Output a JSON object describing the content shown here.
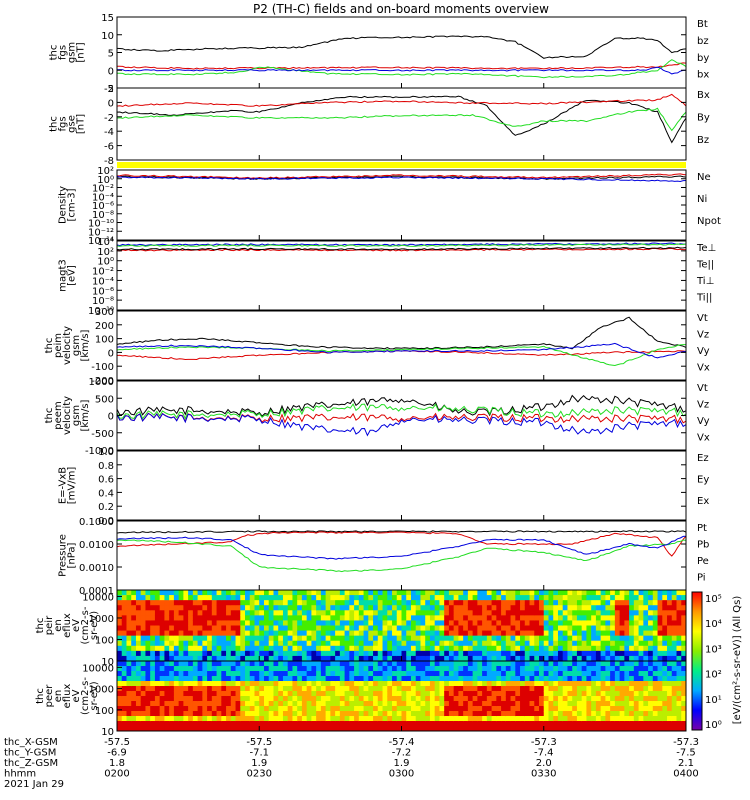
{
  "title": "P2 (TH-C) fields and on-board moments overview",
  "colors": {
    "black": "#000000",
    "red": "#dd0000",
    "green": "#22dd22",
    "blue": "#0000dd",
    "yellow": "#ffff00"
  },
  "chart_data": [
    {
      "type": "line",
      "id": "fgs",
      "ylabel": [
        "thc",
        "fgs",
        "gsm",
        "[nT]"
      ],
      "ylim": [
        -5,
        15
      ],
      "ticks": [
        "15",
        "10",
        "5",
        "0",
        "-5"
      ],
      "legend": [
        "Bt",
        "bz",
        "by",
        "bx"
      ],
      "series": [
        {
          "name": "Bt",
          "color": "black",
          "x": [
            0,
            0.3,
            0.6,
            0.9,
            1.1,
            1.3,
            1.6,
            2,
            2.3,
            2.6,
            2.8,
            3,
            3.3,
            3.5,
            3.7,
            3.8,
            3.9,
            4
          ],
          "y": [
            6,
            5.5,
            6,
            6.2,
            6.3,
            6.5,
            9,
            9.3,
            9.5,
            9.5,
            8,
            3.5,
            4,
            9,
            9,
            8.5,
            5,
            6
          ]
        },
        {
          "name": "bz",
          "color": "red",
          "x": [
            0,
            0.5,
            1,
            1.5,
            2,
            2.5,
            3,
            3.5,
            3.8,
            4
          ],
          "y": [
            1,
            0.5,
            0.6,
            0.7,
            0.8,
            0.6,
            0.5,
            0.8,
            1,
            2
          ]
        },
        {
          "name": "by",
          "color": "green",
          "x": [
            0,
            0.5,
            0.9,
            1,
            1.5,
            2,
            2.5,
            3,
            3.5,
            3.8,
            3.9,
            4
          ],
          "y": [
            -1,
            -1.2,
            -0.5,
            1,
            -1,
            -1.2,
            -1,
            -2,
            -1.5,
            0,
            3,
            1
          ]
        },
        {
          "name": "bx",
          "color": "blue",
          "x": [
            0,
            3.7,
            3.8,
            3.9,
            4
          ],
          "y": [
            0,
            0,
            1,
            -1,
            0
          ]
        }
      ]
    },
    {
      "type": "line",
      "id": "fgs-gse",
      "ylabel": [
        "thc",
        "fgs",
        "gse",
        "[nT]"
      ],
      "ylim": [
        -9,
        3
      ],
      "ticks": [
        "2",
        "0",
        "-2",
        "-4",
        "-6",
        "-8"
      ],
      "legend": [
        "Bx",
        "By",
        "Bz"
      ],
      "series": [
        {
          "name": "Bx",
          "color": "black",
          "x": [
            0,
            0.4,
            0.8,
            1,
            1.3,
            1.6,
            2,
            2.4,
            2.6,
            2.8,
            3,
            3.3,
            3.6,
            3.8,
            3.9,
            4
          ],
          "y": [
            -1,
            -1.5,
            -0.8,
            -1,
            0.5,
            1.5,
            1.5,
            1.6,
            0,
            -5,
            -3,
            1,
            0.5,
            -1,
            -6,
            -2
          ]
        },
        {
          "name": "By",
          "color": "green",
          "x": [
            0,
            0.5,
            1,
            1.5,
            2,
            2.5,
            2.8,
            3,
            3.3,
            3.6,
            3.8,
            3.9,
            4
          ],
          "y": [
            -2,
            -1.5,
            -2,
            -2,
            -1.6,
            -1.5,
            -3.5,
            -2.5,
            -2.5,
            -1,
            -0.5,
            -4,
            -1
          ]
        },
        {
          "name": "Bz",
          "color": "red",
          "x": [
            0,
            0.5,
            1,
            1.5,
            2,
            2.5,
            3,
            3.5,
            3.8,
            3.9,
            4
          ],
          "y": [
            0,
            0.5,
            0,
            0.6,
            0.8,
            0.5,
            0.4,
            0.8,
            1,
            2,
            0
          ]
        }
      ]
    },
    {
      "type": "line",
      "id": "density",
      "ylabel": [
        "Density",
        "[cm-3]"
      ],
      "ylim": [
        -14,
        2
      ],
      "log": true,
      "ticks": [
        "10²",
        "10⁰",
        "10⁻²",
        "10⁻⁴",
        "10⁻⁶",
        "10⁻⁸",
        "10⁻¹⁰",
        "10⁻¹²",
        "10⁻¹⁴"
      ],
      "legend": [
        "Ne",
        "Ni",
        "Npot"
      ],
      "series": [
        {
          "name": "Ne",
          "color": "red",
          "x": [
            0,
            1,
            2,
            3,
            4
          ],
          "y": [
            0.8,
            0.2,
            0.8,
            0.3,
            1
          ]
        },
        {
          "name": "Ni",
          "color": "black",
          "x": [
            0,
            1,
            2,
            3,
            4
          ],
          "y": [
            0.5,
            0,
            0.5,
            0,
            0.5
          ]
        },
        {
          "name": "Npot",
          "color": "blue",
          "x": [
            0,
            1,
            2,
            3,
            4
          ],
          "y": [
            0.4,
            0,
            0.3,
            0,
            -0.5
          ]
        }
      ]
    },
    {
      "type": "line",
      "id": "temp",
      "ylabel": [
        "magt3",
        "[eV]"
      ],
      "ylim": [
        -10,
        4
      ],
      "log": true,
      "ticks": [
        "10⁴",
        "10²",
        "10⁰",
        "10⁻²",
        "10⁻⁴",
        "10⁻⁶",
        "10⁻⁸",
        "10⁻¹⁰"
      ],
      "legend": [
        "Te⊥",
        "Te||",
        "Ti⊥",
        "Ti||"
      ],
      "series": [
        {
          "name": "Te⊥",
          "color": "red",
          "x": [
            0,
            1,
            2,
            3,
            4
          ],
          "y": [
            2.1,
            2.2,
            2.1,
            2.3,
            2.4
          ]
        },
        {
          "name": "Te||",
          "color": "black",
          "x": [
            0,
            1,
            2,
            3,
            4
          ],
          "y": [
            2.3,
            2.4,
            2.3,
            2.5,
            2.6
          ]
        },
        {
          "name": "Ti⊥",
          "color": "blue",
          "x": [
            0,
            1,
            2,
            3,
            4
          ],
          "y": [
            3.2,
            3.3,
            3.2,
            3.4,
            3.5
          ]
        },
        {
          "name": "Ti||",
          "color": "green",
          "x": [
            0,
            1,
            2,
            3,
            4
          ],
          "y": [
            3.0,
            3.1,
            3.0,
            3.2,
            3.3
          ]
        }
      ]
    },
    {
      "type": "line",
      "id": "peim",
      "ylabel": [
        "thc",
        "peim",
        "velocity",
        "gsm",
        "[km/s]"
      ],
      "ylim": [
        -200,
        300
      ],
      "ticks": [
        "300",
        "200",
        "100",
        "0",
        "-100",
        "-200"
      ],
      "legend": [
        "Vt",
        "Vz",
        "Vy",
        "Vx"
      ],
      "series": [
        {
          "name": "Vt",
          "color": "black",
          "x": [
            0,
            0.3,
            0.6,
            1,
            1.4,
            1.8,
            2.2,
            2.6,
            3,
            3.2,
            3.4,
            3.6,
            3.8,
            4
          ],
          "y": [
            60,
            90,
            100,
            70,
            40,
            30,
            30,
            40,
            60,
            30,
            180,
            250,
            80,
            40
          ]
        },
        {
          "name": "Vz",
          "color": "red",
          "x": [
            0,
            0.5,
            1,
            1.5,
            2,
            2.5,
            3,
            3.5,
            4
          ],
          "y": [
            -20,
            -50,
            -20,
            0,
            10,
            0,
            -20,
            0,
            10
          ]
        },
        {
          "name": "Vy",
          "color": "green",
          "x": [
            0,
            0.5,
            1,
            1.5,
            2,
            2.5,
            3,
            3.5,
            3.8,
            4
          ],
          "y": [
            20,
            40,
            30,
            10,
            20,
            30,
            40,
            -100,
            20,
            60
          ]
        },
        {
          "name": "Vx",
          "color": "blue",
          "x": [
            0,
            0.5,
            1,
            1.5,
            2,
            2.5,
            3,
            3.5,
            3.8,
            4
          ],
          "y": [
            40,
            50,
            30,
            0,
            10,
            10,
            20,
            60,
            -40,
            10
          ]
        }
      ]
    },
    {
      "type": "line",
      "id": "peem",
      "ylabel": [
        "thc",
        "peem",
        "velocity",
        "gsm",
        "[km/s]"
      ],
      "ylim": [
        -1000,
        1000
      ],
      "ticks": [
        "1000",
        "500",
        "0",
        "-500",
        "-1000"
      ],
      "legend": [
        "Vt",
        "Vz",
        "Vy",
        "Vx"
      ],
      "series": [
        {
          "name": "Vt",
          "color": "black",
          "x": [
            0,
            0.5,
            1,
            1.2,
            1.5,
            1.8,
            2,
            2.4,
            2.6,
            3,
            3.2,
            3.5,
            3.8,
            4
          ],
          "y": [
            100,
            150,
            80,
            200,
            300,
            400,
            500,
            100,
            80,
            250,
            500,
            450,
            300,
            200
          ]
        },
        {
          "name": "Vz",
          "color": "red",
          "x": [
            0,
            1,
            2,
            3,
            4
          ],
          "y": [
            -50,
            -80,
            -60,
            -80,
            -100
          ]
        },
        {
          "name": "Vy",
          "color": "green",
          "x": [
            0,
            1,
            1.5,
            2,
            3,
            3.5,
            4
          ],
          "y": [
            0,
            50,
            200,
            250,
            50,
            150,
            100
          ]
        },
        {
          "name": "Vx",
          "color": "blue",
          "x": [
            0,
            1,
            1.4,
            1.8,
            2,
            3,
            3.3,
            3.6,
            4
          ],
          "y": [
            -50,
            -100,
            -400,
            -500,
            -100,
            -200,
            -500,
            -300,
            -200
          ]
        }
      ]
    },
    {
      "type": "line",
      "id": "efield",
      "ylabel": [
        "E=-VxB",
        "[mV/m]"
      ],
      "ylim": [
        0,
        1
      ],
      "ticks": [
        "1.0",
        "0.8",
        "0.6",
        "0.4",
        "0.2",
        "0.0"
      ],
      "legend": [
        "Ez",
        "Ey",
        "Ex"
      ],
      "series": []
    },
    {
      "type": "line",
      "id": "pressure",
      "ylabel": [
        "Pressure",
        "[nPa]"
      ],
      "ylim": [
        -4,
        -0.7
      ],
      "log": true,
      "ticks": [
        "0.1000",
        "0.0100",
        "0.0010",
        "0.0001"
      ],
      "legend": [
        "Pt",
        "Pb",
        "Pe",
        "Pi"
      ],
      "series": [
        {
          "name": "Pt",
          "color": "black",
          "x": [
            0,
            1,
            2,
            3,
            4
          ],
          "y": [
            -1.25,
            -1.2,
            -1.2,
            -1.2,
            -1.2
          ]
        },
        {
          "name": "Pb",
          "color": "red",
          "x": [
            0,
            0.8,
            0.9,
            1.1,
            2,
            2.4,
            2.6,
            3.2,
            3.5,
            3.8,
            3.9,
            4
          ],
          "y": [
            -1.9,
            -1.7,
            -1.4,
            -1.25,
            -1.25,
            -1.3,
            -1.8,
            -1.8,
            -1.3,
            -1.5,
            -2.4,
            -1.4
          ]
        },
        {
          "name": "Pe",
          "color": "green",
          "x": [
            0,
            0.4,
            0.8,
            1,
            1.6,
            2,
            2.4,
            2.6,
            3,
            3.3,
            3.6,
            3.9,
            4
          ],
          "y": [
            -1.6,
            -1.7,
            -1.9,
            -2.9,
            -3.1,
            -3.0,
            -2.4,
            -2.0,
            -2.2,
            -2.6,
            -1.9,
            -1.8,
            -1.6
          ]
        },
        {
          "name": "Pi",
          "color": "blue",
          "x": [
            0,
            0.5,
            0.8,
            1,
            1.5,
            2,
            2.4,
            2.6,
            3,
            3.3,
            3.6,
            3.8,
            4
          ],
          "y": [
            -1.55,
            -1.5,
            -1.6,
            -2.3,
            -2.5,
            -2.4,
            -1.9,
            -1.6,
            -1.6,
            -2.3,
            -1.8,
            -2.0,
            -1.4
          ]
        }
      ]
    },
    {
      "type": "heatmap",
      "id": "peir",
      "ylabel": [
        "thc",
        "peir",
        "en",
        "eflux",
        "eV",
        "(cm2-s-",
        "sr-eV)"
      ],
      "ticks": [
        "10000",
        "1000",
        "100",
        "10"
      ],
      "ylim": [
        1,
        4.3
      ],
      "hot_intervals": [
        [
          0,
          0.85
        ],
        [
          2.3,
          3.0
        ],
        [
          3.5,
          3.6
        ],
        [
          3.8,
          4
        ]
      ],
      "colorbar": "eV/(cm2-s-sr-eV)"
    },
    {
      "type": "heatmap",
      "id": "peer",
      "ylabel": [
        "thc",
        "peer",
        "en",
        "eflux",
        "eV",
        "(cm2-s-",
        "sr-eV)"
      ],
      "ticks": [
        "10000",
        "1000",
        "100",
        "10"
      ],
      "ylim": [
        1,
        4.3
      ],
      "hot_intervals": [
        [
          0,
          0.85
        ],
        [
          2.3,
          3.0
        ]
      ],
      "colorbar": "eV/(cm2-s-sr-eV)"
    }
  ],
  "colorbar": {
    "ticks": [
      "10⁵",
      "10⁴",
      "10³",
      "10²",
      "10¹",
      "10⁰"
    ],
    "label": "[eV/(cm²-s-sr-eV)]",
    "sublabel": "(All Qs)"
  },
  "xaxis": {
    "rows": [
      {
        "label": "thc_X-GSM",
        "values": [
          "-57.5",
          "-57.5",
          "-57.4",
          "-57.3",
          "-57.3"
        ]
      },
      {
        "label": "thc_Y-GSM",
        "values": [
          "-6.9",
          "-7.1",
          "-7.2",
          "-7.4",
          "-7.5"
        ]
      },
      {
        "label": "thc_Z-GSM",
        "values": [
          "1.8",
          "1.9",
          "1.9",
          "2.0",
          "2.1"
        ]
      },
      {
        "label": "hhmm",
        "values": [
          "0200",
          "0230",
          "0300",
          "0330",
          "0400"
        ]
      }
    ],
    "date": "2021 Jan 29"
  }
}
